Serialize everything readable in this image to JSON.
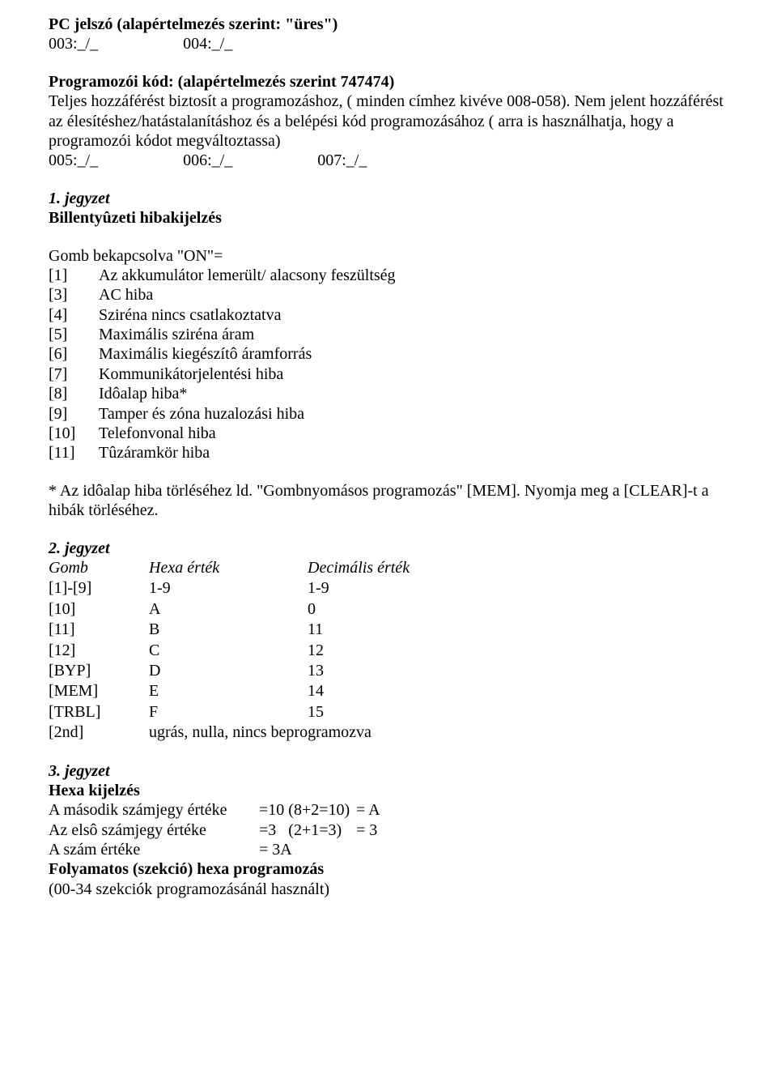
{
  "sec1": {
    "title": "PC jelszó (alapértelmezés szerint: \"üres\")",
    "line_codes": "003:_/_                     004:_/_",
    "subtitle": "Programozói kód: (alapértelmezés szerint 747474)",
    "p1": "Teljes hozzáférést biztosít a programozáshoz, ( minden címhez kivéve 008-058). Nem jelent hozzáférést az élesítéshez/hatástalanításhoz és a belépési kód programozásához ( arra is használhatja, hogy a programozói kódot megváltoztassa)",
    "codes2": "005:_/_                     006:_/_                     007:_/_"
  },
  "note1": {
    "heading": "1. jegyzet",
    "subheading": "Billentyûzeti hibakijelzés",
    "intro": "Gomb bekapcsolva \"ON\"=",
    "items": [
      {
        "k": "[1]",
        "v": "Az akkumulátor lemerült/ alacsony feszültség"
      },
      {
        "k": "[3]",
        "v": "AC hiba"
      },
      {
        "k": "[4]",
        "v": "Sziréna nincs csatlakoztatva"
      },
      {
        "k": "[5]",
        "v": "Maximális sziréna áram"
      },
      {
        "k": "[6]",
        "v": "Maximális kiegészítô áramforrás"
      },
      {
        "k": "[7]",
        "v": "Kommunikátorjelentési hiba"
      },
      {
        "k": "[8]",
        "v": "Idôalap hiba*"
      },
      {
        "k": "[9]",
        "v": "Tamper és zóna huzalozási hiba"
      },
      {
        "k": "[10]",
        "v": "Telefonvonal hiba"
      },
      {
        "k": "[11]",
        "v": "Tûzáramkör hiba"
      }
    ],
    "footer": "* Az idôalap hiba törléséhez ld. \"Gombnyomásos programozás\" [MEM]. Nyomja meg a [CLEAR]-t a hibák törléséhez."
  },
  "note2": {
    "heading": "2. jegyzet",
    "headers": {
      "gomb": "Gomb",
      "hexa": "Hexa érték",
      "dec": "Decimális érték"
    },
    "rows": [
      {
        "g": "[1]-[9]",
        "h": "1-9",
        "d": "1-9"
      },
      {
        "g": "[10]",
        "h": "A",
        "d": "0"
      },
      {
        "g": "[11]",
        "h": "B",
        "d": "11"
      },
      {
        "g": "[12]",
        "h": "C",
        "d": "12"
      },
      {
        "g": "[BYP]",
        "h": "D",
        "d": "13"
      },
      {
        "g": "[MEM]",
        "h": "E",
        "d": "14"
      },
      {
        "g": "[TRBL]",
        "h": "F",
        "d": "15"
      },
      {
        "g": "[2nd]",
        "h": "ugrás, nulla, nincs beprogramozva",
        "d": ""
      }
    ]
  },
  "note3": {
    "heading": "3. jegyzet",
    "subheading": "Hexa kijelzés",
    "rows": [
      {
        "label": "A második számjegy értéke",
        "mid": "=10 (8+2=10)",
        "rhs": "= A"
      },
      {
        "label": "Az elsô számjegy értéke",
        "mid": "=3   (2+1=3)",
        "rhs": "= 3"
      },
      {
        "label": "A szám értéke",
        "mid": "= 3A",
        "rhs": ""
      }
    ],
    "sub2": "Folyamatos (szekció) hexa programozás",
    "sub2b": "(00-34 szekciók programozásánál használt)"
  }
}
